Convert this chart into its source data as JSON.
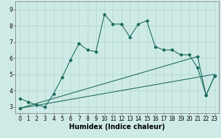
{
  "xlabel": "Humidex (Indice chaleur)",
  "bg_color": "#ceeae6",
  "line_color": "#1a6b5a",
  "xlim": [
    -0.5,
    23.5
  ],
  "ylim": [
    2.6,
    9.5
  ],
  "xticks": [
    0,
    1,
    2,
    3,
    4,
    5,
    6,
    7,
    8,
    9,
    10,
    11,
    12,
    13,
    14,
    15,
    16,
    17,
    18,
    19,
    20,
    21,
    22,
    23
  ],
  "yticks": [
    3,
    4,
    5,
    6,
    7,
    8,
    9
  ],
  "line1_x": [
    0,
    1,
    2,
    3,
    4,
    5,
    6,
    7,
    8,
    9,
    10,
    11,
    12,
    13,
    14,
    15,
    16,
    17,
    18,
    19,
    20,
    21,
    22,
    23
  ],
  "line1_y": [
    3.5,
    3.3,
    3.1,
    3.0,
    3.8,
    4.8,
    5.9,
    6.9,
    6.5,
    6.4,
    8.7,
    8.1,
    8.1,
    7.3,
    8.1,
    8.3,
    6.7,
    6.5,
    6.5,
    6.2,
    6.2,
    5.4,
    3.7,
    4.9
  ],
  "line2_x": [
    0,
    23
  ],
  "line2_y": [
    2.9,
    5.0
  ],
  "line3_x": [
    0,
    21,
    22,
    23
  ],
  "line3_y": [
    2.9,
    6.1,
    3.7,
    4.9
  ],
  "grid_color": "#aed4cf",
  "tick_fontsize": 5.5,
  "xlabel_fontsize": 7
}
